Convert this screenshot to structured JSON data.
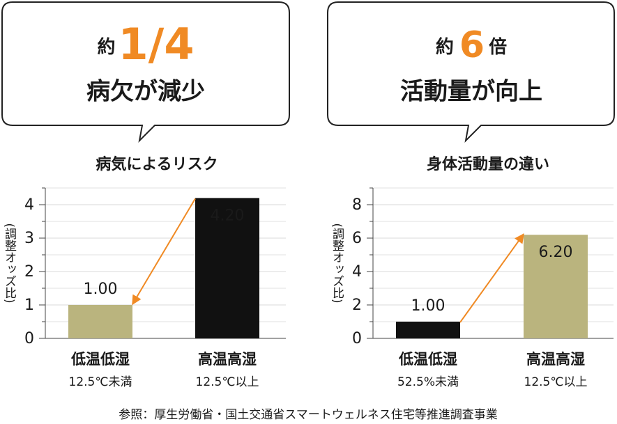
{
  "callouts": [
    {
      "prefix": "約",
      "emphasis": "1/4",
      "text": "病欠が減少"
    },
    {
      "prefix": "約",
      "emphasis": "6",
      "suffix": "倍",
      "text": "活動量が向上"
    }
  ],
  "chart_data": [
    {
      "type": "bar",
      "title": "病気によるリスク",
      "ylabel": "(調整オッズ比)",
      "categories": [
        "低温低湿",
        "高温高湿"
      ],
      "category_notes": [
        "12.5℃未満",
        "12.5℃以上"
      ],
      "values": [
        1,
        4.2
      ],
      "value_labels": [
        "1.00",
        "4.20"
      ],
      "colors": [
        "#bab47e",
        "#111111"
      ],
      "ylim": [
        0,
        4.5
      ],
      "yticks": [
        0,
        1,
        2,
        3,
        4
      ],
      "minor_yticks": [
        0.5,
        1.5,
        2.5,
        3.5,
        4.5
      ],
      "grid": true,
      "arrow": {
        "from": 1,
        "to": 0,
        "color": "#f08a24"
      }
    },
    {
      "type": "bar",
      "title": "身体活動量の違い",
      "ylabel": "(調整オッズ比)",
      "categories": [
        "低温低湿",
        "高温高湿"
      ],
      "category_notes": [
        "52.5%未満",
        "12.5℃以上"
      ],
      "values": [
        1,
        6.2
      ],
      "value_labels": [
        "1.00",
        "6.20"
      ],
      "colors": [
        "#111111",
        "#bab47e"
      ],
      "ylim": [
        0,
        9
      ],
      "yticks": [
        0,
        2,
        4,
        6,
        8
      ],
      "minor_yticks": [
        1,
        3,
        5,
        7,
        9
      ],
      "grid": true,
      "arrow": {
        "from": 0,
        "to": 1,
        "color": "#f08a24"
      }
    }
  ],
  "source": "参照：厚生労働省・国土交通省スマートウェルネス住宅等推進調査事業"
}
